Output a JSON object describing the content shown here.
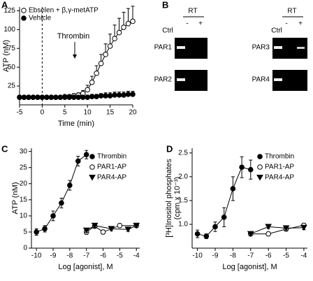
{
  "panel_labels": [
    "A",
    "B",
    "C",
    "D"
  ],
  "gel_panel": {
    "rt": "RT",
    "minus": "-",
    "plus": "+",
    "ctrl": "Ctrl",
    "rows": [
      "PAR1",
      "PAR2",
      "PAR3",
      "PAR4"
    ]
  },
  "chart_data": [
    {
      "type": "line",
      "xlabel": "Time (min)",
      "ylabel": "ATP (nM)",
      "xlim": [
        -5,
        20
      ],
      "xticks": [
        -5,
        0,
        5,
        10,
        15,
        20
      ],
      "ylim": [
        0,
        130
      ],
      "yticks": [
        25,
        50,
        75,
        100,
        125
      ],
      "legend": "top-left",
      "error_bars": "upper",
      "annotation": "Thrombin",
      "x": [
        -5,
        -4,
        -3,
        -2,
        -1,
        0,
        1,
        2,
        3,
        4,
        5,
        6,
        7,
        8,
        9,
        10,
        11,
        12,
        13,
        14,
        15,
        16,
        17,
        18,
        19,
        20
      ],
      "series": [
        {
          "name": "Ebselen + β,γ-metATP",
          "color": "#000000",
          "marker": "circle",
          "filled": false,
          "line": true,
          "values": [
            10,
            10,
            10,
            10,
            10,
            10,
            10,
            10,
            10,
            10,
            11,
            11,
            12,
            13,
            15,
            20,
            30,
            42,
            55,
            67,
            78,
            88,
            96,
            103,
            108,
            111
          ],
          "errors": [
            2,
            2,
            2,
            2,
            2,
            2,
            2,
            2,
            2,
            2,
            2,
            2,
            3,
            3,
            4,
            6,
            8,
            10,
            12,
            14,
            16,
            18,
            19,
            20,
            20,
            20
          ]
        },
        {
          "name": "Vehicle",
          "color": "#000000",
          "marker": "circle",
          "filled": true,
          "line": true,
          "values": [
            10,
            10,
            10,
            10,
            10,
            10,
            10,
            10,
            10,
            10,
            10,
            10,
            10,
            10,
            10,
            10,
            11,
            11,
            12,
            12,
            12,
            13,
            13,
            13,
            14,
            14
          ],
          "errors": [
            2,
            2,
            2,
            2,
            2,
            2,
            2,
            2,
            2,
            2,
            2,
            2,
            2,
            2,
            2,
            3,
            3,
            3,
            3,
            4,
            4,
            4,
            4,
            4,
            4,
            4
          ]
        }
      ]
    },
    {
      "type": "line",
      "xlabel": "Log [agonist], M",
      "ylabel": "ATP (nM)",
      "xlim": [
        -10.3,
        -3.8
      ],
      "xticks": [
        -10,
        -9,
        -8,
        -7,
        -6,
        -5,
        -4
      ],
      "ylim": [
        0,
        31
      ],
      "yticks": [
        0,
        5,
        10,
        15,
        20,
        25,
        30
      ],
      "legend": "top-right",
      "error_bars": "both",
      "series": [
        {
          "name": "Thrombin",
          "color": "#000000",
          "marker": "circle",
          "filled": true,
          "line": true,
          "x": [
            -10,
            -9.5,
            -9,
            -8.5,
            -8,
            -7.5,
            -7
          ],
          "values": [
            5,
            6,
            10,
            14,
            19.5,
            27,
            29
          ],
          "errors": [
            1,
            1,
            1.5,
            1.5,
            1.5,
            1.5,
            1.3
          ]
        },
        {
          "name": "PAR1-AP",
          "color": "#000000",
          "marker": "circle",
          "filled": false,
          "line": true,
          "x": [
            -7,
            -6.5,
            -6,
            -5,
            -4
          ],
          "values": [
            5,
            6.8,
            5,
            7,
            7
          ],
          "errors": [
            0.7,
            0.6,
            0.6,
            0.6,
            0.6
          ]
        },
        {
          "name": "PAR4-AP",
          "color": "#000000",
          "marker": "triangle",
          "filled": true,
          "line": true,
          "x": [
            -7,
            -6.5,
            -5.5,
            -4.5,
            -4
          ],
          "values": [
            5.5,
            7,
            6,
            5.8,
            7
          ],
          "errors": [
            0.6,
            0.6,
            0.6,
            0.6,
            0.6
          ]
        }
      ]
    },
    {
      "type": "line",
      "xlabel": "Log [agonist], M",
      "ylabel": [
        "[³H]Inositol phosphates",
        "(cpm x 10⁻³)"
      ],
      "xlim": [
        -10.3,
        -3.8
      ],
      "xticks": [
        -10,
        -9,
        -8,
        -7,
        -6,
        -5,
        -4
      ],
      "ylim": [
        0.5,
        2.6
      ],
      "yticks": [
        {
          "value": 1,
          "label": "1.0"
        },
        {
          "value": 1.5,
          "label": "1.5"
        },
        {
          "value": 2,
          "label": "2.0"
        },
        {
          "value": 2.5,
          "label": "2.5"
        }
      ],
      "legend": "top-right",
      "error_bars": "both",
      "series": [
        {
          "name": "Thrombin",
          "color": "#000000",
          "marker": "circle",
          "filled": true,
          "line": true,
          "x": [
            -10,
            -9.5,
            -9,
            -8.5,
            -8,
            -7.5,
            -7
          ],
          "values": [
            0.8,
            0.75,
            0.95,
            1.15,
            1.75,
            2.2,
            2.15
          ],
          "errors": [
            0.08,
            0.05,
            0.1,
            0.2,
            0.25,
            0.22,
            0.2
          ]
        },
        {
          "name": "PAR1-AP",
          "color": "#000000",
          "marker": "circle",
          "filled": false,
          "line": true,
          "x": [
            -7,
            -6,
            -5,
            -4
          ],
          "values": [
            0.8,
            0.8,
            0.9,
            0.98
          ],
          "errors": [
            0.04,
            0.04,
            0.04,
            0.04
          ]
        },
        {
          "name": "PAR4-AP",
          "color": "#000000",
          "marker": "triangle",
          "filled": true,
          "line": true,
          "x": [
            -7,
            -6,
            -5,
            -4
          ],
          "values": [
            0.8,
            0.95,
            0.92,
            0.93
          ],
          "errors": [
            0.04,
            0.04,
            0.04,
            0.04
          ]
        }
      ]
    }
  ]
}
